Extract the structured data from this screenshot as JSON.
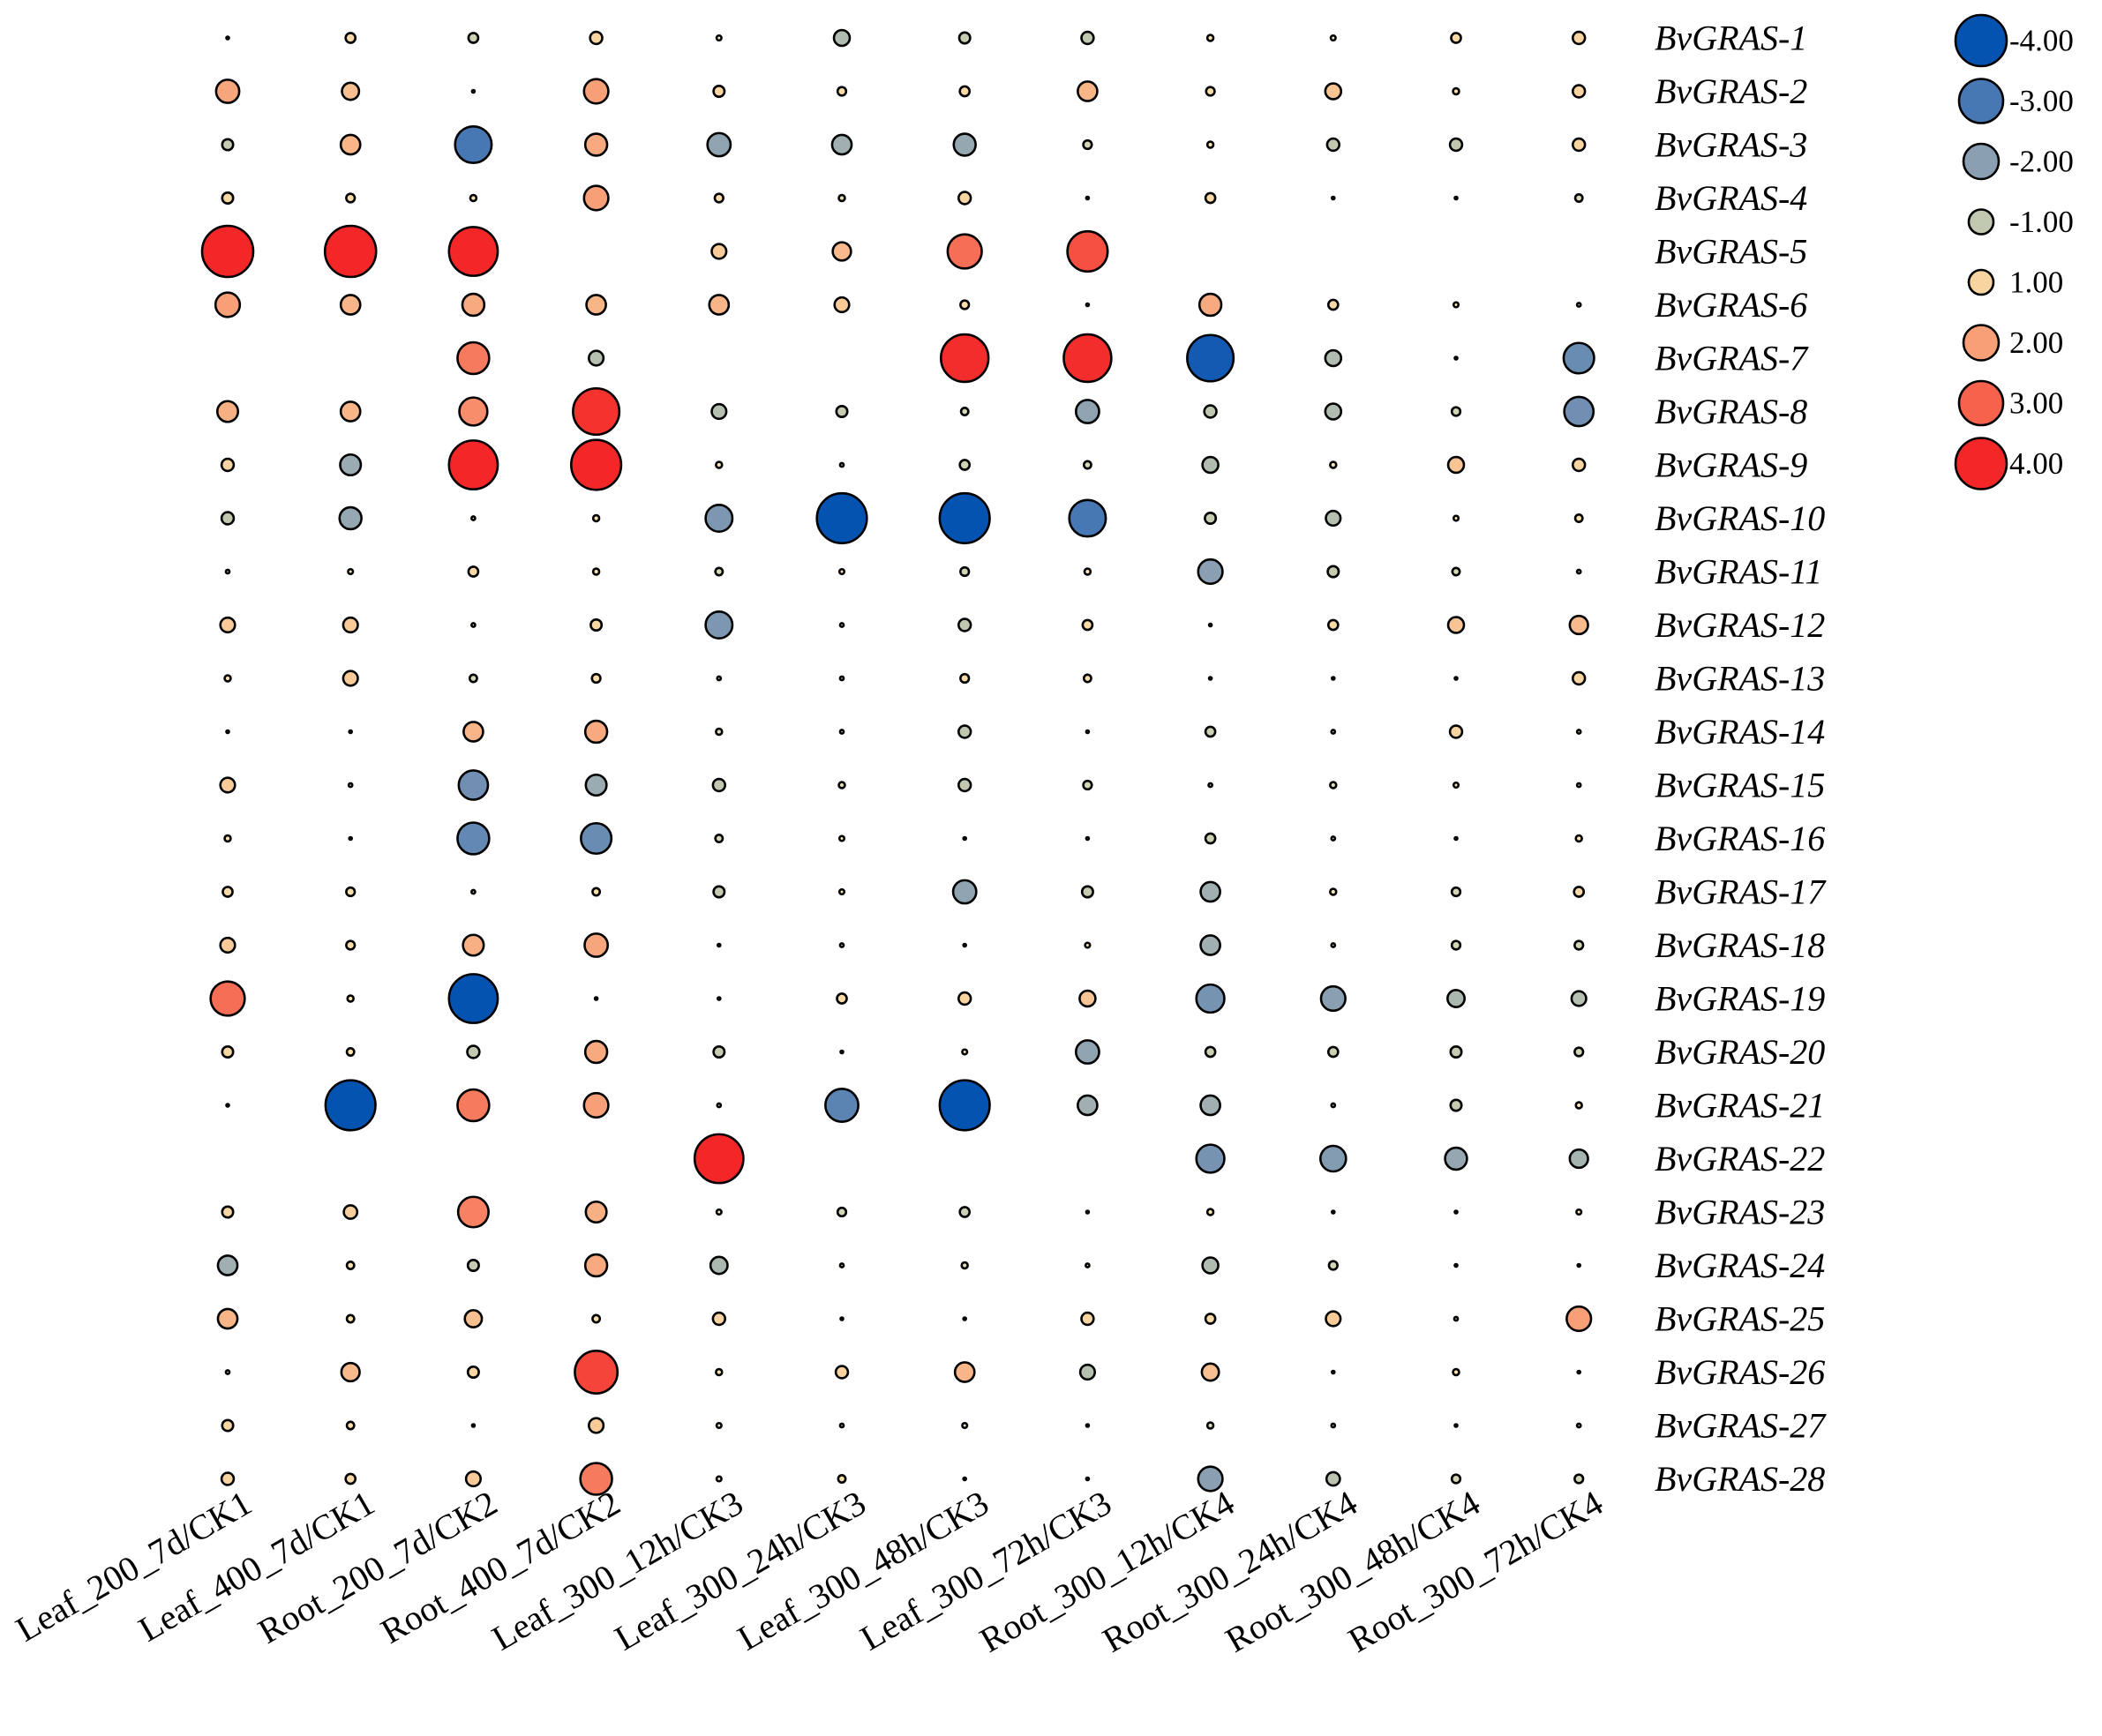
{
  "chart_data": {
    "type": "bubble-heatmap",
    "title": "",
    "columns": [
      "Leaf_200_7d/CK1",
      "Leaf_400_7d/CK1",
      "Root_200_7d/CK2",
      "Root_400_7d/CK2",
      "Leaf_300_12h/CK3",
      "Leaf_300_24h/CK3",
      "Leaf_300_48h/CK3",
      "Leaf_300_72h/CK3",
      "Root_300_12h/CK4",
      "Root_300_24h/CK4",
      "Root_300_48h/CK4",
      "Root_300_72h/CK4"
    ],
    "rows": [
      "BvGRAS-1",
      "BvGRAS-2",
      "BvGRAS-3",
      "BvGRAS-4",
      "BvGRAS-5",
      "BvGRAS-6",
      "BvGRAS-7",
      "BvGRAS-8",
      "BvGRAS-9",
      "BvGRAS-10",
      "BvGRAS-11",
      "BvGRAS-12",
      "BvGRAS-13",
      "BvGRAS-14",
      "BvGRAS-15",
      "BvGRAS-16",
      "BvGRAS-17",
      "BvGRAS-18",
      "BvGRAS-19",
      "BvGRAS-20",
      "BvGRAS-21",
      "BvGRAS-22",
      "BvGRAS-23",
      "BvGRAS-24",
      "BvGRAS-25",
      "BvGRAS-26",
      "BvGRAS-27",
      "BvGRAS-28"
    ],
    "values": [
      [
        0.2,
        0.8,
        -0.8,
        1.0,
        0.4,
        -1.3,
        -0.9,
        -1.0,
        0.5,
        0.4,
        0.8,
        1.0
      ],
      [
        1.9,
        1.4,
        0.2,
        2.0,
        0.9,
        0.7,
        0.8,
        1.6,
        0.7,
        1.3,
        0.5,
        1.0
      ],
      [
        -0.9,
        1.6,
        -3.0,
        1.8,
        -1.9,
        -1.6,
        -1.8,
        -0.7,
        0.5,
        -1.0,
        -1.0,
        1.0
      ],
      [
        0.9,
        0.7,
        0.5,
        2.0,
        0.7,
        -0.5,
        1.0,
        0.2,
        0.8,
        0.2,
        0.1,
        -0.6
      ],
      [
        4.2,
        4.2,
        4.0,
        null,
        1.2,
        1.5,
        2.8,
        3.3,
        null,
        null,
        null,
        null
      ],
      [
        2.0,
        1.6,
        1.8,
        1.6,
        1.6,
        1.2,
        0.7,
        0.1,
        1.8,
        0.8,
        0.4,
        0.3
      ],
      [
        null,
        null,
        2.6,
        -1.2,
        null,
        null,
        3.9,
        3.9,
        -3.8,
        -1.3,
        0.1,
        -2.5
      ],
      [
        1.7,
        1.6,
        2.3,
        3.8,
        -1.2,
        -0.9,
        -0.6,
        -1.9,
        -1.0,
        -1.3,
        -0.7,
        -2.4
      ],
      [
        1.0,
        -1.7,
        4.0,
        4.1,
        0.5,
        0.3,
        -0.8,
        -0.6,
        -1.3,
        0.5,
        1.3,
        1.0
      ],
      [
        -1.0,
        -1.8,
        0.3,
        0.5,
        -2.2,
        -4.1,
        -4.1,
        -3.0,
        -0.9,
        -1.2,
        0.4,
        0.6
      ],
      [
        0.3,
        0.4,
        0.8,
        0.5,
        -0.6,
        0.4,
        -0.7,
        0.5,
        -2.0,
        -0.9,
        -0.6,
        0.3
      ],
      [
        1.2,
        1.2,
        0.3,
        0.9,
        -2.2,
        0.3,
        -1.0,
        0.8,
        0.1,
        0.8,
        1.3,
        1.5
      ],
      [
        0.5,
        1.2,
        -0.6,
        0.7,
        0.3,
        0.3,
        0.7,
        0.6,
        0.2,
        0.2,
        0.2,
        1.0
      ],
      [
        0.1,
        0.1,
        1.6,
        1.8,
        -0.5,
        -0.3,
        -1.0,
        0.05,
        -0.8,
        -0.3,
        1.0,
        0.3
      ],
      [
        1.2,
        0.3,
        -2.4,
        -1.7,
        -1.0,
        -0.5,
        -1.0,
        -0.7,
        0.3,
        -0.5,
        0.4,
        0.3
      ],
      [
        0.5,
        0.2,
        -2.6,
        -2.5,
        -0.6,
        0.4,
        0.2,
        0.2,
        -0.8,
        0.3,
        0.1,
        0.5
      ],
      [
        0.8,
        0.7,
        0.3,
        0.6,
        -0.9,
        0.4,
        -1.9,
        -0.9,
        -1.6,
        0.5,
        -0.7,
        0.8
      ],
      [
        1.2,
        0.7,
        1.7,
        1.9,
        0.2,
        0.3,
        0.05,
        0.4,
        -1.6,
        0.3,
        -0.7,
        -0.7
      ],
      [
        2.8,
        0.5,
        -4.0,
        0.02,
        0.1,
        0.8,
        1.0,
        1.3,
        -2.3,
        -2.0,
        -1.4,
        -1.2
      ],
      [
        0.9,
        0.6,
        -1.0,
        1.8,
        -0.9,
        0.1,
        0.4,
        -1.9,
        -0.8,
        -0.8,
        -0.9,
        -0.7
      ],
      [
        0.02,
        -4.1,
        2.6,
        2.0,
        0.3,
        -2.7,
        -4.1,
        -1.6,
        -1.6,
        0.3,
        -0.9,
        0.5
      ],
      [
        null,
        null,
        null,
        null,
        4.0,
        null,
        null,
        null,
        -2.3,
        -2.1,
        -1.8,
        -1.5
      ],
      [
        0.9,
        1.1,
        2.5,
        1.7,
        0.4,
        -0.7,
        -0.8,
        0.05,
        0.5,
        0.02,
        0.1,
        0.4
      ],
      [
        -1.6,
        0.6,
        -0.9,
        1.8,
        -1.4,
        0.3,
        -0.5,
        0.3,
        -1.3,
        -0.7,
        0.2,
        0.1
      ],
      [
        1.6,
        0.6,
        1.4,
        0.6,
        1.0,
        0.05,
        0.1,
        1.0,
        0.8,
        1.2,
        0.3,
        2.0
      ],
      [
        0.3,
        1.5,
        0.9,
        3.5,
        0.5,
        1.0,
        1.6,
        -1.2,
        1.4,
        0.1,
        0.5,
        0.2
      ],
      [
        0.9,
        0.6,
        0.1,
        1.2,
        -0.4,
        -0.3,
        -0.4,
        0.05,
        -0.5,
        -0.3,
        0.2,
        0.3
      ],
      [
        1.0,
        0.8,
        1.2,
        2.6,
        -0.4,
        0.6,
        0.2,
        0.2,
        -2.0,
        -1.1,
        -0.7,
        -0.7
      ]
    ],
    "legend": {
      "labels": [
        "-4.00",
        "-3.00",
        "-2.00",
        "-1.00",
        "1.00",
        "2.00",
        "3.00",
        "4.00"
      ],
      "values": [
        -4,
        -3,
        -2,
        -1,
        1,
        2,
        3,
        4
      ],
      "colors": [
        "#0553b1",
        "#4878b4",
        "#8a9fb1",
        "#c0c8b0",
        "#f8d4a0",
        "#f7a078",
        "#f6624c",
        "#f32727"
      ]
    },
    "value_range": [
      -4,
      4
    ],
    "colorscale": [
      "#0553b1",
      "#4878b4",
      "#8a9fb1",
      "#c0c8b0",
      "#fff2bf",
      "#f8d4a0",
      "#f7a078",
      "#f6624c",
      "#f32727"
    ],
    "xlabel": "",
    "ylabel": ""
  }
}
